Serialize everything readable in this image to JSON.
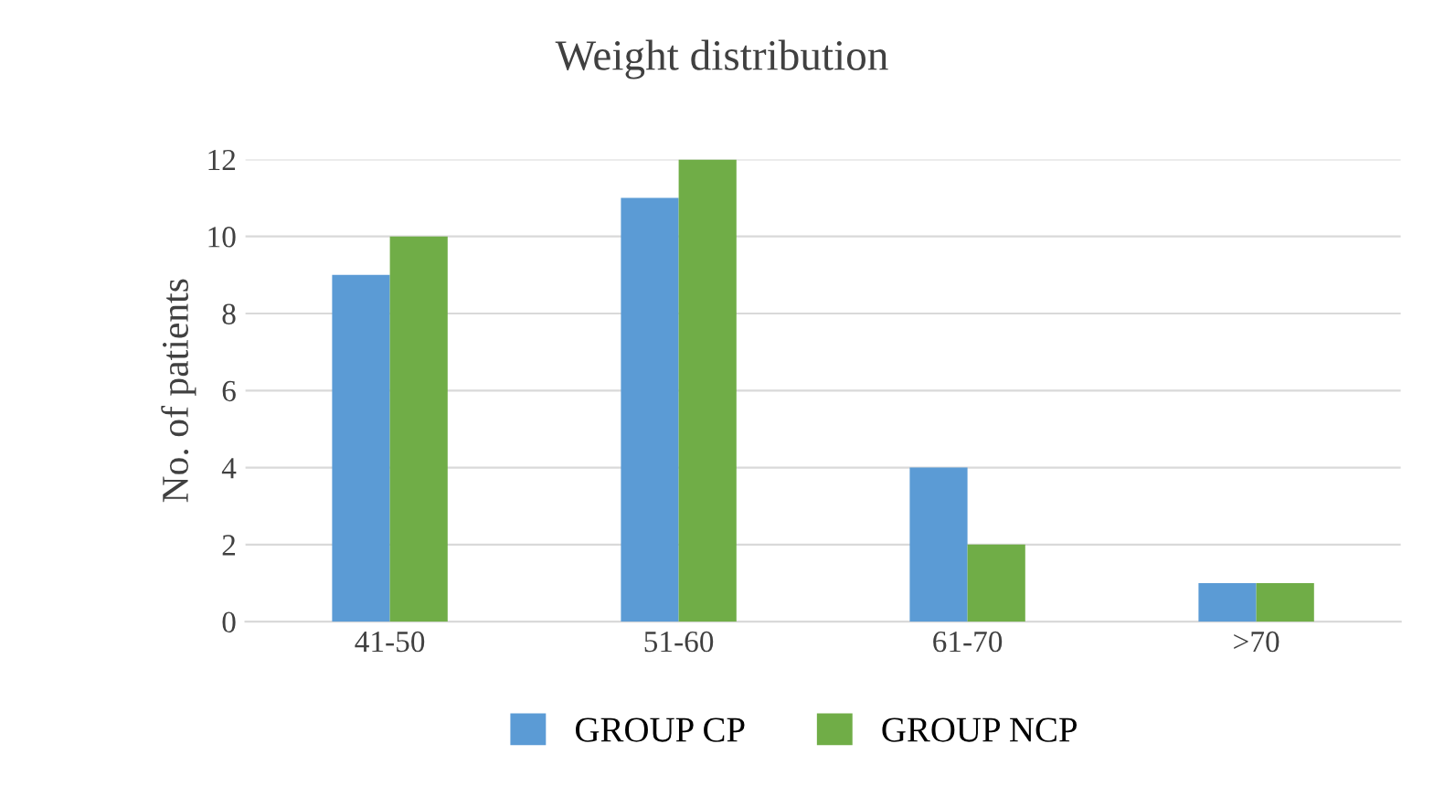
{
  "chart_data": {
    "type": "bar",
    "title": "Weight distribution",
    "ylabel": "No. of patients",
    "categories": [
      "41-50",
      "51-60",
      "61-70",
      ">70"
    ],
    "series": [
      {
        "name": "GROUP CP",
        "color": "#5b9bd5",
        "values": [
          9,
          11,
          4,
          1
        ]
      },
      {
        "name": "GROUP NCP",
        "color": "#70ad47",
        "values": [
          10,
          12,
          2,
          1
        ]
      }
    ],
    "ylim": [
      0,
      12
    ],
    "yticks": [
      0,
      2,
      4,
      6,
      8,
      10,
      12
    ],
    "grid": "y",
    "legend": "bottom"
  }
}
